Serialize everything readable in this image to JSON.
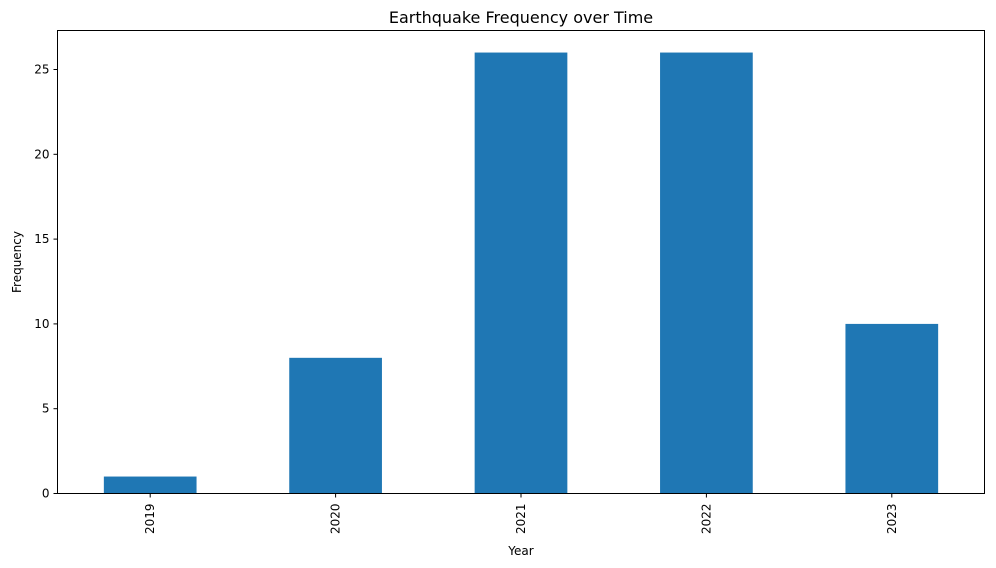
{
  "chart_data": {
    "type": "bar",
    "title": "Earthquake Frequency over Time",
    "xlabel": "Year",
    "ylabel": "Frequency",
    "categories": [
      "2019",
      "2020",
      "2021",
      "2022",
      "2023"
    ],
    "values": [
      1,
      8,
      26,
      26,
      10
    ],
    "ylim": [
      0,
      27.3
    ],
    "yticks": [
      0,
      5,
      10,
      15,
      20,
      25
    ],
    "bar_color": "#1f77b4",
    "grid": false,
    "legend": "none"
  }
}
